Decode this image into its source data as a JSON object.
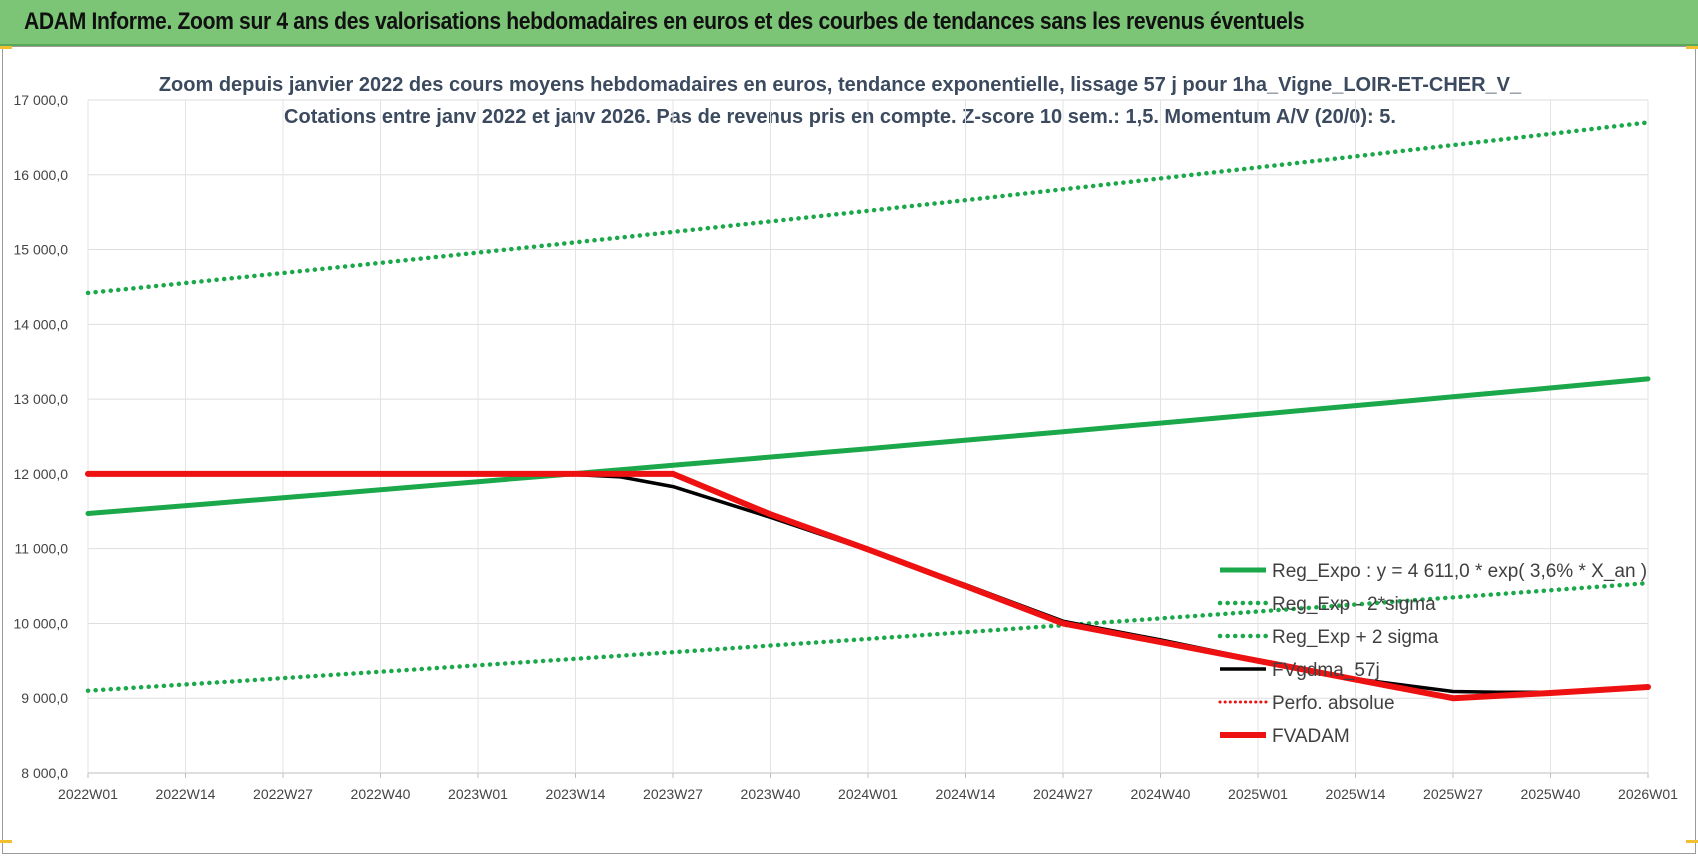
{
  "banner": {
    "title": "ADAM Informe. Zoom sur 4 ans des valorisations hebdomadaires en euros et des courbes de tendances sans les revenus éventuels"
  },
  "colors": {
    "banner": "#7cc576",
    "trend": "#1aa84a",
    "fvgdma": "#000000",
    "fvadam": "#ee1111",
    "perfo": "#ee1111"
  },
  "chart_data": {
    "type": "line",
    "title": "Zoom depuis janvier 2022 des cours moyens hebdomadaires en euros, tendance exponentielle, lissage 57 j pour 1ha_Vigne_LOIR-ET-CHER_V_",
    "subtitle": "Cotations entre janv 2022 et janv 2026. Pas de revenus pris en compte. Z-score 10 sem.: 1,5. Momentum A/V (20/0): 5.",
    "xlabel": "",
    "ylabel": "",
    "ylim": [
      8000,
      17000
    ],
    "grid": true,
    "legend_position": "right",
    "x_ticks": [
      "2022W01",
      "2022W14",
      "2022W27",
      "2022W40",
      "2023W01",
      "2023W14",
      "2023W27",
      "2023W40",
      "2024W01",
      "2024W14",
      "2024W27",
      "2024W40",
      "2025W01",
      "2025W14",
      "2025W27",
      "2025W40",
      "2026W01"
    ],
    "y_ticks": [
      "8 000,0",
      "9 000,0",
      "10 000,0",
      "11 000,0",
      "12 000,0",
      "13 000,0",
      "14 000,0",
      "15 000,0",
      "16 000,0",
      "17 000,0"
    ],
    "series": [
      {
        "name": "Reg_Expo : y = 4 611,0 * exp( 3,6% *  X_an )",
        "style": "solid-thick",
        "x": [
          "2022W01",
          "2026W01"
        ],
        "values": [
          11470,
          13270
        ],
        "shape": "exponential"
      },
      {
        "name": "Reg_Exp - 2*sigma",
        "style": "dotted",
        "x": [
          "2022W01",
          "2026W01"
        ],
        "values": [
          9100,
          10540
        ],
        "shape": "exponential"
      },
      {
        "name": "Reg_Exp + 2 sigma",
        "style": "dotted",
        "x": [
          "2022W01",
          "2026W01"
        ],
        "values": [
          14420,
          16700
        ],
        "shape": "exponential"
      },
      {
        "name": "FVgdma_57j",
        "style": "solid",
        "x": [
          "2022W01",
          "2023W14",
          "2023W20",
          "2023W27",
          "2023W40",
          "2024W01",
          "2024W14",
          "2024W27",
          "2024W40",
          "2025W01",
          "2025W14",
          "2025W27",
          "2025W33",
          "2025W40",
          "2026W01"
        ],
        "values": [
          12000,
          11990,
          11960,
          11830,
          11420,
          10980,
          10520,
          10030,
          9780,
          9510,
          9260,
          9090,
          9080,
          9080,
          9140
        ]
      },
      {
        "name": "Perfo. absolue",
        "style": "dotted",
        "x": [],
        "values": []
      },
      {
        "name": "FVADAM",
        "style": "solid-thick",
        "x": [
          "2022W01",
          "2023W14",
          "2023W27",
          "2023W40",
          "2024W01",
          "2024W14",
          "2024W27",
          "2024W40",
          "2025W01",
          "2025W14",
          "2025W27",
          "2025W40",
          "2026W01"
        ],
        "values": [
          12000,
          12000,
          12000,
          11460,
          10990,
          10500,
          10000,
          9750,
          9500,
          9250,
          9000,
          9070,
          9150
        ]
      }
    ]
  }
}
